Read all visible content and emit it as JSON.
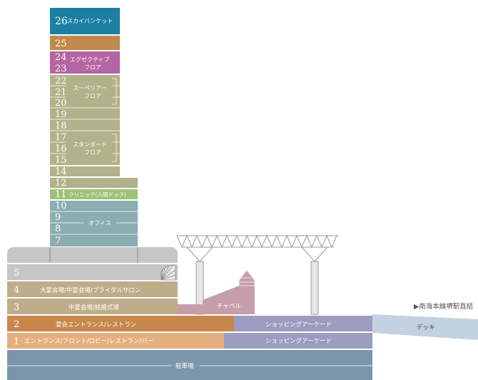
{
  "floors": {
    "f26": {
      "num": "26",
      "label": "スカイバンケット"
    },
    "f25": {
      "num": "25"
    },
    "f24": {
      "num": "24"
    },
    "f23": {
      "num": "23"
    },
    "f24_23_label": [
      "エグゼクティブ",
      "フロア"
    ],
    "f22": {
      "num": "22"
    },
    "f21": {
      "num": "21"
    },
    "f20": {
      "num": "20"
    },
    "f22_20_label": [
      "スーペリアー",
      "フロア"
    ],
    "f19": {
      "num": "19"
    },
    "f18": {
      "num": "18"
    },
    "f17": {
      "num": "17"
    },
    "f16": {
      "num": "16"
    },
    "f15": {
      "num": "15"
    },
    "f17_15_label": [
      "スタンダード",
      "フロア"
    ],
    "f14": {
      "num": "14"
    },
    "f12": {
      "num": "12"
    },
    "f11": {
      "num": "11",
      "label": "クリニック(人間ドック)"
    },
    "f10": {
      "num": "10"
    },
    "f9": {
      "num": "9"
    },
    "f8": {
      "num": "8"
    },
    "f7": {
      "num": "7"
    },
    "f10_7_label": "オフィス",
    "f5": {
      "num": "5"
    },
    "f4": {
      "num": "4",
      "label": "大宴会場/中宴会場/ブライダルサロン"
    },
    "f3": {
      "num": "3",
      "label": "中宴会場/結婚式場"
    },
    "chapel": "チャペル",
    "f2": {
      "num": "2",
      "label": "宴会エントランス/レストラン",
      "shop": "ショッピングアーケード"
    },
    "f1": {
      "num": "1",
      "label": "エントランス/フロント/ロビー/レストラン/バー",
      "shop": "ショッピングアーケード"
    },
    "parking": "駐車場"
  },
  "deck": "デッキ",
  "station_link": "▶南海本線堺駅直結",
  "colors": {
    "banquet26": "#1b7fa4",
    "f25": "#c08a4a",
    "executive": "#b565a1",
    "guest": "#b2b28a",
    "clinic": "#9cc277",
    "office": "#8aaeb2",
    "podium_gray": "#c6c6c6",
    "banquet_tan": "#bfad8a",
    "orange2": "#c8874a",
    "orange1": "#e4b07f",
    "shop": "#9b9cbf",
    "parking": "#7b96ab",
    "chapel": "#c59ea8",
    "deck": "#c3d2e0"
  }
}
